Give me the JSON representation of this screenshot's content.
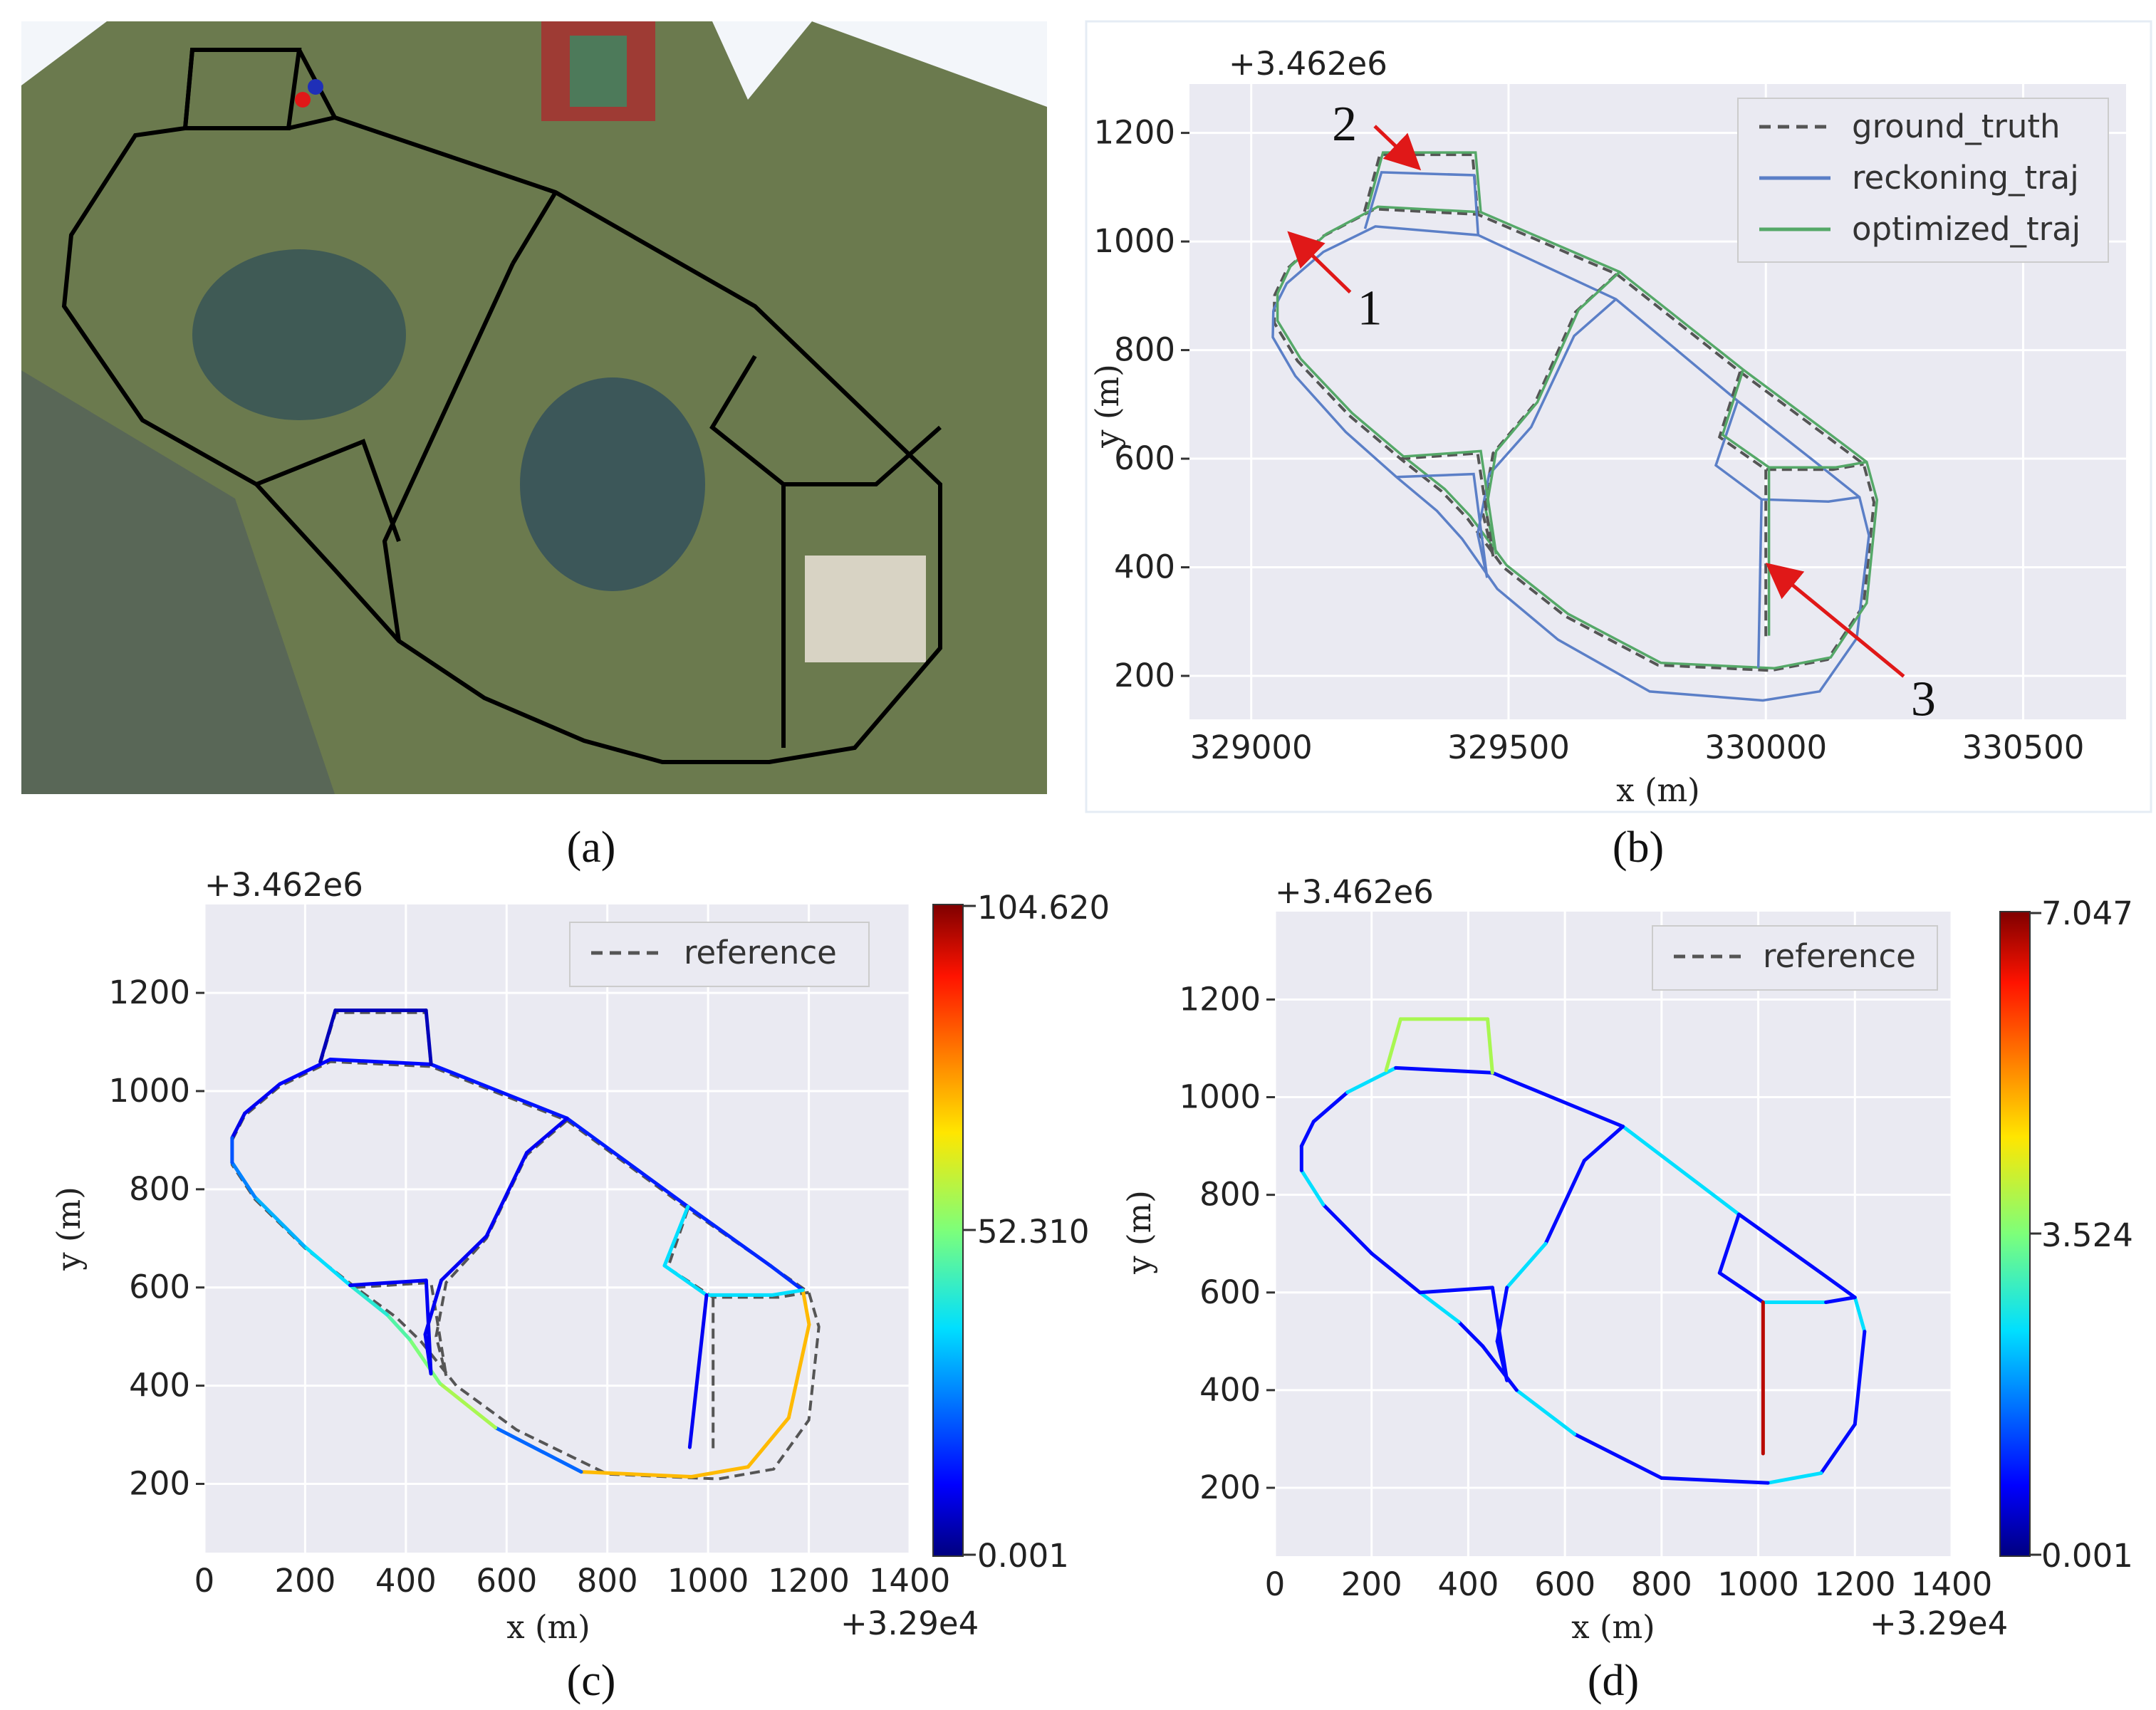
{
  "chart_data": [
    {
      "panel": "a",
      "type": "map",
      "caption": "(a)",
      "legend": [],
      "markers": [
        {
          "color": "#e01818"
        },
        {
          "color": "#1f2fb8"
        }
      ],
      "colors": {
        "route": "#000000"
      }
    },
    {
      "panel": "b",
      "type": "line",
      "caption": "(b)",
      "xlabel": "x (m)",
      "ylabel": "y (m)",
      "x_offset_label": "",
      "y_offset_label": "+3.462e6",
      "xlim": [
        328880,
        330700
      ],
      "ylim": [
        120,
        1290
      ],
      "xticks": [
        329000,
        329500,
        330000,
        330500
      ],
      "yticks": [
        200,
        400,
        600,
        800,
        1000,
        1200
      ],
      "grid": true,
      "legend_position": "top-right",
      "series": [
        {
          "name": "ground_truth",
          "style": "dashed",
          "color": "#555555"
        },
        {
          "name": "reckoning_traj",
          "style": "solid",
          "color": "#5b7fc7"
        },
        {
          "name": "optimized_traj",
          "style": "solid",
          "color": "#55a868"
        }
      ],
      "annotations": [
        {
          "text": "1",
          "x": 329040,
          "y": 1005
        },
        {
          "text": "2",
          "x": 329240,
          "y": 1160
        },
        {
          "text": "3",
          "x": 330005,
          "y": 350
        }
      ]
    },
    {
      "panel": "c",
      "type": "line",
      "caption": "(c)",
      "xlabel": "x (m)",
      "ylabel": "y (m)",
      "x_offset_label": "+3.29e4",
      "y_offset_label": "+3.462e6",
      "xlim": [
        0,
        1400
      ],
      "ylim": [
        60,
        1380
      ],
      "xticks": [
        0,
        200,
        400,
        600,
        800,
        1000,
        1200,
        1400
      ],
      "yticks": [
        200,
        400,
        600,
        800,
        1000,
        1200
      ],
      "grid": true,
      "legend_position": "top-right",
      "series": [
        {
          "name": "reference",
          "style": "dashed",
          "color": "#555555"
        }
      ],
      "colorbar": {
        "min": 0.001,
        "mid": 52.31,
        "max": 104.62,
        "tick_labels": [
          "0.001",
          "52.310",
          "104.620"
        ]
      }
    },
    {
      "panel": "d",
      "type": "line",
      "caption": "(d)",
      "xlabel": "x (m)",
      "ylabel": "y (m)",
      "x_offset_label": "+3.29e4",
      "y_offset_label": "+3.462e6",
      "xlim": [
        0,
        1400
      ],
      "ylim": [
        60,
        1380
      ],
      "xticks": [
        0,
        200,
        400,
        600,
        800,
        1000,
        1200,
        1400
      ],
      "yticks": [
        200,
        400,
        600,
        800,
        1000,
        1200
      ],
      "grid": true,
      "legend_position": "top-right",
      "series": [
        {
          "name": "reference",
          "style": "dashed",
          "color": "#555555"
        }
      ],
      "colorbar": {
        "min": 0.001,
        "mid": 3.524,
        "max": 7.047,
        "tick_labels": [
          "0.001",
          "3.524",
          "7.047"
        ]
      }
    }
  ]
}
